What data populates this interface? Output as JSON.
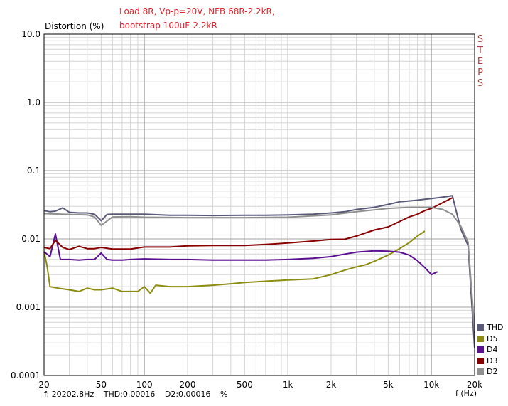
{
  "annotations": [
    "Load 8R, Vp-p=20V, NFB 68R-2.2kR,",
    "bootstrap 100uF-2.2kR"
  ],
  "steps_label": [
    "S",
    "T",
    "E",
    "P",
    "S"
  ],
  "status": {
    "freq": "f: 20202.8Hz",
    "thd": "THD:0.00016",
    "d2": "D2:0.00016",
    "unit": "%"
  },
  "chart_data": {
    "type": "line",
    "ylabel": "Distortion (%)",
    "xlabel": "f (Hz)",
    "x_scale": "log",
    "y_scale": "log",
    "xlim": [
      20,
      20000
    ],
    "ylim": [
      0.0001,
      10
    ],
    "grid": true,
    "legend_position": "bottom-right",
    "x_tick_labels": [
      {
        "value": 20,
        "label": "20"
      },
      {
        "value": 50,
        "label": "50"
      },
      {
        "value": 100,
        "label": "100"
      },
      {
        "value": 200,
        "label": "200"
      },
      {
        "value": 500,
        "label": "500"
      },
      {
        "value": 1000,
        "label": "1k"
      },
      {
        "value": 2000,
        "label": "2k"
      },
      {
        "value": 5000,
        "label": "5k"
      },
      {
        "value": 10000,
        "label": "10k"
      },
      {
        "value": 20000,
        "label": "20k"
      }
    ],
    "y_tick_labels": [
      {
        "value": 10,
        "label": "10.0"
      },
      {
        "value": 1,
        "label": "1.0"
      },
      {
        "value": 0.1,
        "label": "0.1"
      },
      {
        "value": 0.01,
        "label": "0.01"
      },
      {
        "value": 0.001,
        "label": "0.001"
      },
      {
        "value": 0.0001,
        "label": "0.0001"
      }
    ],
    "series": [
      {
        "name": "THD",
        "color": "#5a5a78",
        "x": [
          20,
          22,
          24,
          27,
          30,
          35,
          40,
          45,
          50,
          55,
          60,
          80,
          100,
          150,
          200,
          300,
          500,
          700,
          1000,
          1500,
          2000,
          2500,
          3000,
          4000,
          5000,
          6000,
          7000,
          8000,
          9000,
          10000,
          12000,
          14000,
          16000,
          18000,
          20000
        ],
        "y": [
          0.026,
          0.025,
          0.0255,
          0.0285,
          0.0245,
          0.024,
          0.024,
          0.023,
          0.0185,
          0.0228,
          0.023,
          0.023,
          0.023,
          0.0222,
          0.0222,
          0.022,
          0.0222,
          0.0222,
          0.0225,
          0.023,
          0.024,
          0.025,
          0.027,
          0.029,
          0.032,
          0.035,
          0.036,
          0.037,
          0.038,
          0.039,
          0.041,
          0.043,
          0.014,
          0.008,
          0.00025
        ]
      },
      {
        "name": "D5",
        "color": "#8c8c10",
        "x": [
          20,
          21,
          22,
          25,
          30,
          35,
          40,
          45,
          50,
          60,
          70,
          80,
          90,
          100,
          110,
          120,
          150,
          200,
          300,
          400,
          500,
          700,
          1000,
          1500,
          2000,
          2500,
          3000,
          3500,
          4000,
          5000,
          6000,
          7000,
          8000,
          9000
        ],
        "y": [
          0.0065,
          0.004,
          0.002,
          0.0019,
          0.0018,
          0.0017,
          0.0019,
          0.0018,
          0.0018,
          0.0019,
          0.0017,
          0.0017,
          0.0017,
          0.002,
          0.0016,
          0.0021,
          0.002,
          0.002,
          0.0021,
          0.0022,
          0.0023,
          0.0024,
          0.0025,
          0.0026,
          0.003,
          0.0035,
          0.0039,
          0.0042,
          0.0047,
          0.0058,
          0.0072,
          0.0088,
          0.011,
          0.013
        ]
      },
      {
        "name": "D4",
        "color": "#5a1090",
        "x": [
          20,
          22,
          24,
          26,
          30,
          35,
          40,
          45,
          50,
          55,
          60,
          70,
          80,
          100,
          150,
          200,
          300,
          500,
          700,
          1000,
          1500,
          2000,
          2500,
          3000,
          4000,
          5000,
          6000,
          7000,
          8000,
          9000,
          10000,
          11000
        ],
        "y": [
          0.0065,
          0.0055,
          0.0118,
          0.005,
          0.005,
          0.0049,
          0.005,
          0.005,
          0.0062,
          0.005,
          0.0049,
          0.0049,
          0.005,
          0.0051,
          0.005,
          0.005,
          0.0049,
          0.0049,
          0.0049,
          0.005,
          0.0052,
          0.0055,
          0.006,
          0.0064,
          0.0067,
          0.0066,
          0.0064,
          0.0058,
          0.0048,
          0.0038,
          0.003,
          0.0033
        ]
      },
      {
        "name": "D3",
        "color": "#880000",
        "x": [
          20,
          22,
          24,
          27,
          30,
          35,
          40,
          45,
          50,
          60,
          70,
          80,
          100,
          150,
          200,
          300,
          500,
          700,
          1000,
          1500,
          2000,
          2500,
          3000,
          4000,
          5000,
          6000,
          7000,
          8000,
          9000,
          10000,
          12000,
          14000
        ],
        "y": [
          0.0075,
          0.0072,
          0.0095,
          0.0075,
          0.007,
          0.0078,
          0.0072,
          0.0072,
          0.0075,
          0.0071,
          0.0071,
          0.0071,
          0.0076,
          0.0076,
          0.0079,
          0.008,
          0.008,
          0.0083,
          0.0087,
          0.0093,
          0.0098,
          0.0099,
          0.011,
          0.0135,
          0.015,
          0.018,
          0.021,
          0.023,
          0.026,
          0.028,
          0.034,
          0.04
        ]
      },
      {
        "name": "D2",
        "color": "#909090",
        "x": [
          20,
          30,
          40,
          45,
          50,
          60,
          80,
          100,
          200,
          500,
          1000,
          2000,
          3000,
          5000,
          7000,
          10000,
          12000,
          14000,
          16000,
          18000,
          20000
        ],
        "y": [
          0.0235,
          0.0228,
          0.0225,
          0.021,
          0.0158,
          0.021,
          0.0212,
          0.0208,
          0.0205,
          0.0205,
          0.0208,
          0.0225,
          0.025,
          0.028,
          0.029,
          0.029,
          0.027,
          0.023,
          0.0155,
          0.009,
          0.00045
        ]
      }
    ]
  }
}
